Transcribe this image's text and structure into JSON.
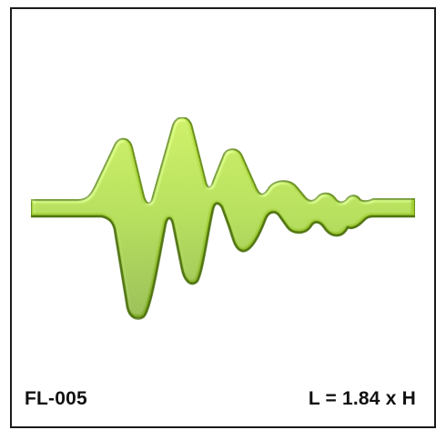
{
  "product": {
    "code": "FL-005",
    "ratio_text": "L = 1.84 x H"
  },
  "colors": {
    "shape_light": "#b8e03a",
    "shape_mid": "#8cc21e",
    "shape_dark": "#4e7a0c",
    "shape_edge": "#3d5e08",
    "frame": "#1a1a1a"
  },
  "icons": {
    "waveform": "waveform-shape-icon"
  }
}
